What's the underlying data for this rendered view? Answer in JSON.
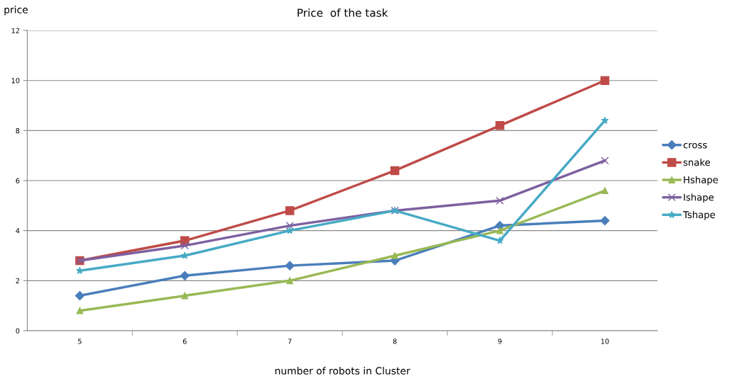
{
  "chart_data": {
    "type": "line",
    "title": "Price  of the task",
    "xlabel": "number of robots in Cluster",
    "ylabel": "price",
    "categories": [
      "5",
      "6",
      "7",
      "8",
      "9",
      "10"
    ],
    "series": [
      {
        "name": "cross",
        "color": "#4a7ebb",
        "marker": "diamond",
        "values": [
          1.4,
          2.2,
          2.6,
          2.8,
          4.2,
          4.4
        ]
      },
      {
        "name": "snake",
        "color": "#be4b48",
        "marker": "square",
        "values": [
          2.8,
          3.6,
          4.8,
          6.4,
          8.2,
          10
        ]
      },
      {
        "name": "Hshape",
        "color": "#98b954",
        "marker": "triangle",
        "values": [
          0.8,
          1.4,
          2.0,
          3.0,
          4.0,
          5.6
        ]
      },
      {
        "name": "Ishape",
        "color": "#7d60a0",
        "marker": "cross",
        "values": [
          2.8,
          3.4,
          4.2,
          4.8,
          5.2,
          6.8
        ]
      },
      {
        "name": "Tshape",
        "color": "#46aac5",
        "marker": "star",
        "values": [
          2.4,
          3.0,
          4.0,
          4.8,
          3.6,
          8.4
        ]
      }
    ],
    "ylim": [
      0,
      12
    ],
    "yticks": [
      0,
      2,
      4,
      6,
      8,
      10,
      12
    ],
    "grid": "y",
    "legend": "right",
    "line_style": "solid"
  }
}
